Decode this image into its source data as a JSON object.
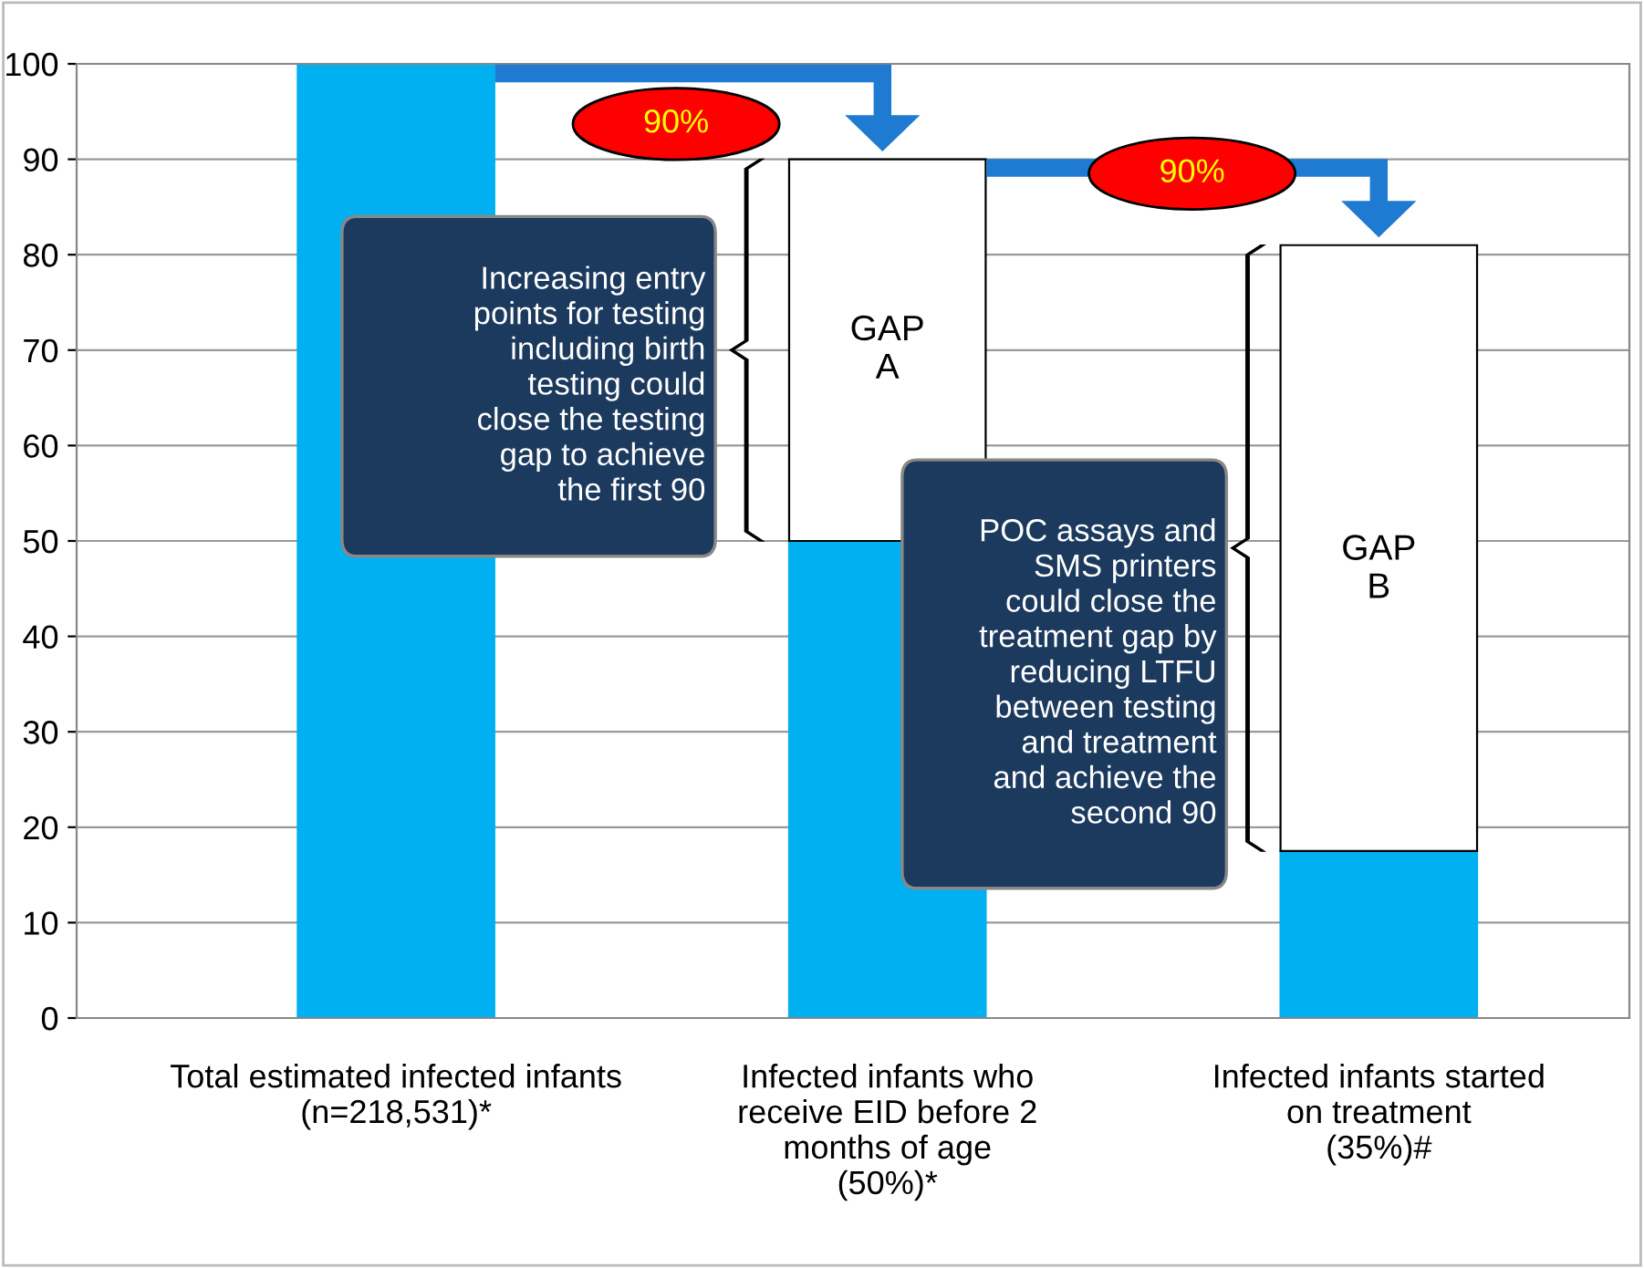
{
  "chart_data": {
    "type": "bar",
    "stacked": true,
    "categories": [
      "Total estimated infected infants\n(n=218,531)*",
      "Infected infants who\nreceive EID before 2\nmonths of age\n(50%)*",
      "Infected infants started\non treatment\n(35%)#"
    ],
    "series": [
      {
        "color": "#00b0f0",
        "values": [
          100,
          50,
          17.5
        ]
      },
      {
        "color": "#ffffff",
        "values": [
          null,
          40,
          63.5
        ]
      }
    ],
    "ylim": [
      0,
      100
    ],
    "yticks": [
      0,
      10,
      20,
      30,
      40,
      50,
      60,
      70,
      80,
      90,
      100
    ],
    "grid": "y",
    "legend": false,
    "annotations": [
      "90%",
      "90%",
      "GAP\nA",
      "GAP\nB",
      "Increasing entry\npoints for testing\nincluding birth\ntesting could\nclose the testing\ngap to achieve\nthe first 90",
      "POC assays and\nSMS printers\ncould close the\ntreatment gap by\nreducing LTFU\nbetween testing\nand treatment\nand achieve the\nsecond 90"
    ]
  }
}
